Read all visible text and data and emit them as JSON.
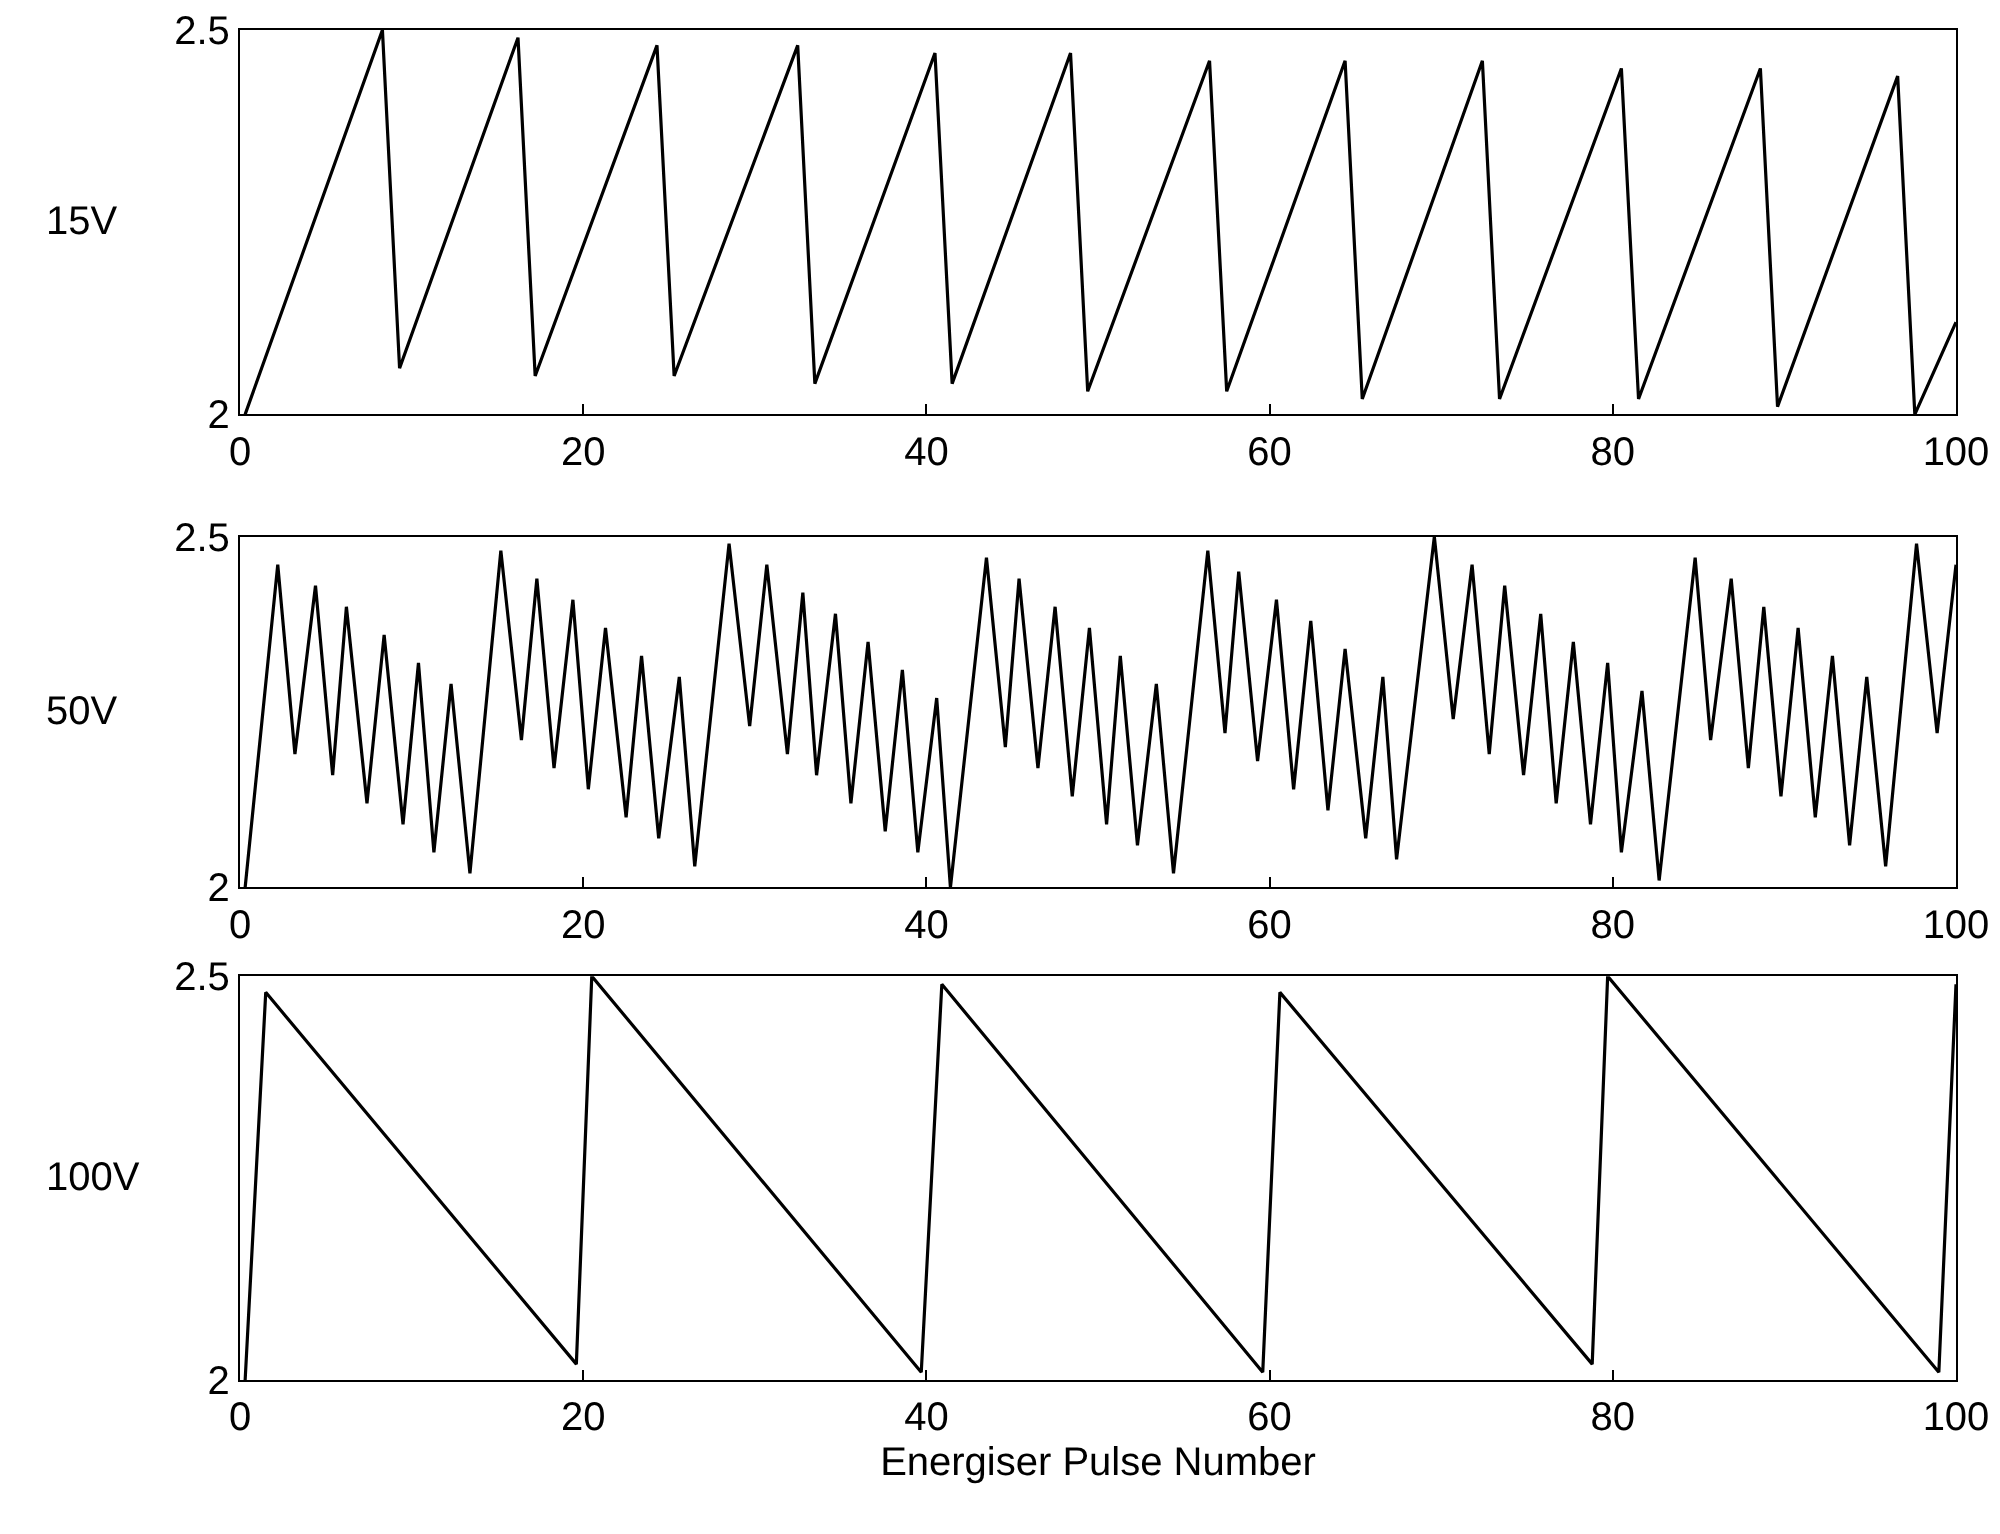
{
  "chart_data": [
    {
      "type": "line",
      "ylabel": "15V",
      "color": "#000000",
      "xlim": [
        0,
        100
      ],
      "ylim": [
        2,
        2.5
      ],
      "xticks": [
        0,
        20,
        40,
        60,
        80,
        100
      ],
      "yticks": [
        2,
        2.5
      ],
      "marker": "none",
      "line_style": "solid",
      "x": [
        0.3,
        8.3,
        9.3,
        16.2,
        17.2,
        24.3,
        25.3,
        32.5,
        33.5,
        40.5,
        41.5,
        48.4,
        49.4,
        56.5,
        57.5,
        64.4,
        65.4,
        72.4,
        73.4,
        80.5,
        81.5,
        88.6,
        89.6,
        96.6,
        97.6,
        100
      ],
      "values": [
        2.0,
        2.5,
        2.06,
        2.49,
        2.05,
        2.48,
        2.05,
        2.48,
        2.04,
        2.47,
        2.04,
        2.47,
        2.03,
        2.46,
        2.03,
        2.46,
        2.02,
        2.46,
        2.02,
        2.45,
        2.02,
        2.45,
        2.01,
        2.44,
        2.0,
        2.12
      ]
    },
    {
      "type": "line",
      "ylabel": "50V",
      "color": "#000000",
      "xlim": [
        0,
        100
      ],
      "ylim": [
        2,
        2.5
      ],
      "xticks": [
        0,
        20,
        40,
        60,
        80,
        100
      ],
      "yticks": [
        2,
        2.5
      ],
      "marker": "none",
      "line_style": "solid",
      "x": [
        0.3,
        2.2,
        3.2,
        4.4,
        5.4,
        6.2,
        7.4,
        8.4,
        9.5,
        10.4,
        11.3,
        12.3,
        13.4,
        15.2,
        16.4,
        17.3,
        18.3,
        19.4,
        20.3,
        21.3,
        22.5,
        23.4,
        24.4,
        25.6,
        26.5,
        28.5,
        29.7,
        30.7,
        31.9,
        32.8,
        33.6,
        34.7,
        35.6,
        36.6,
        37.6,
        38.6,
        39.5,
        40.6,
        41.4,
        43.5,
        44.6,
        45.4,
        46.5,
        47.5,
        48.5,
        49.5,
        50.5,
        51.3,
        52.3,
        53.4,
        54.4,
        56.4,
        57.4,
        58.2,
        59.3,
        60.4,
        61.4,
        62.4,
        63.4,
        64.4,
        65.6,
        66.6,
        67.4,
        69.6,
        70.7,
        71.8,
        72.8,
        73.7,
        74.8,
        75.8,
        76.7,
        77.7,
        78.7,
        79.7,
        80.5,
        81.7,
        82.7,
        84.8,
        85.7,
        86.9,
        87.9,
        88.8,
        89.8,
        90.8,
        91.8,
        92.8,
        93.8,
        94.8,
        95.9,
        97.7,
        98.9,
        100
      ],
      "values": [
        2.0,
        2.46,
        2.19,
        2.43,
        2.16,
        2.4,
        2.12,
        2.36,
        2.09,
        2.32,
        2.05,
        2.29,
        2.02,
        2.48,
        2.21,
        2.44,
        2.17,
        2.41,
        2.14,
        2.37,
        2.1,
        2.33,
        2.07,
        2.3,
        2.03,
        2.49,
        2.23,
        2.46,
        2.19,
        2.42,
        2.16,
        2.39,
        2.12,
        2.35,
        2.08,
        2.31,
        2.05,
        2.27,
        2.0,
        2.47,
        2.2,
        2.44,
        2.17,
        2.4,
        2.13,
        2.37,
        2.09,
        2.33,
        2.06,
        2.29,
        2.02,
        2.48,
        2.22,
        2.45,
        2.18,
        2.41,
        2.14,
        2.38,
        2.11,
        2.34,
        2.07,
        2.3,
        2.04,
        2.5,
        2.24,
        2.46,
        2.19,
        2.43,
        2.16,
        2.39,
        2.12,
        2.35,
        2.09,
        2.32,
        2.05,
        2.28,
        2.01,
        2.47,
        2.21,
        2.44,
        2.17,
        2.4,
        2.13,
        2.37,
        2.1,
        2.33,
        2.06,
        2.3,
        2.03,
        2.49,
        2.22,
        2.46
      ]
    },
    {
      "type": "line",
      "ylabel": "100V",
      "xlabel": "Energiser Pulse Number",
      "color": "#000000",
      "xlim": [
        0,
        100
      ],
      "ylim": [
        2,
        2.5
      ],
      "xticks": [
        0,
        20,
        40,
        60,
        80,
        100
      ],
      "yticks": [
        2,
        2.5
      ],
      "marker": "none",
      "line_style": "solid",
      "x": [
        0.3,
        1.5,
        19.6,
        20.5,
        39.7,
        40.9,
        59.6,
        60.6,
        78.8,
        79.7,
        99.0,
        100
      ],
      "values": [
        2.0,
        2.48,
        2.02,
        2.5,
        2.01,
        2.49,
        2.01,
        2.48,
        2.02,
        2.5,
        2.01,
        2.49
      ]
    }
  ]
}
